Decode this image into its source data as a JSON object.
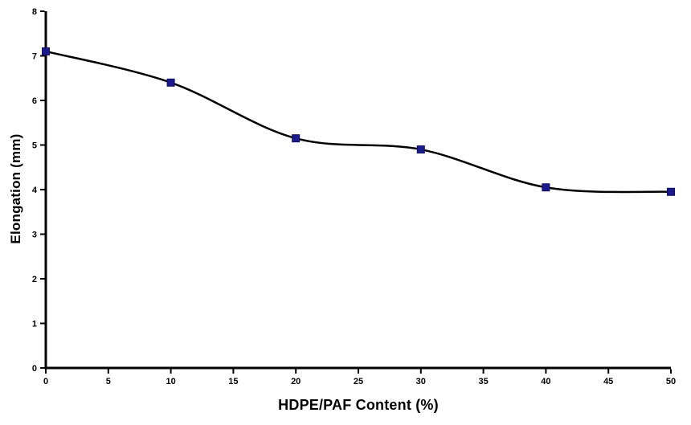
{
  "chart_data": {
    "type": "line",
    "x": [
      0,
      10,
      20,
      30,
      40,
      50
    ],
    "series": [
      {
        "name": "Elongation",
        "values": [
          7.1,
          6.4,
          5.15,
          4.9,
          4.05,
          3.95
        ]
      }
    ],
    "title": "",
    "xlabel": "HDPE/PAF Content (%)",
    "ylabel": "Elongation (mm)",
    "xlim": [
      0,
      50
    ],
    "ylim": [
      0,
      8
    ],
    "xticks": [
      0,
      5,
      10,
      15,
      20,
      25,
      30,
      35,
      40,
      45,
      50
    ],
    "yticks": [
      0,
      1,
      2,
      3,
      4,
      5,
      6,
      7,
      8
    ],
    "grid": false,
    "legend": "none",
    "marker": "square",
    "marker_color": "#1a1a8c",
    "line_color": "#000000",
    "axis_color": "#000000",
    "background_color": "#ffffff"
  }
}
